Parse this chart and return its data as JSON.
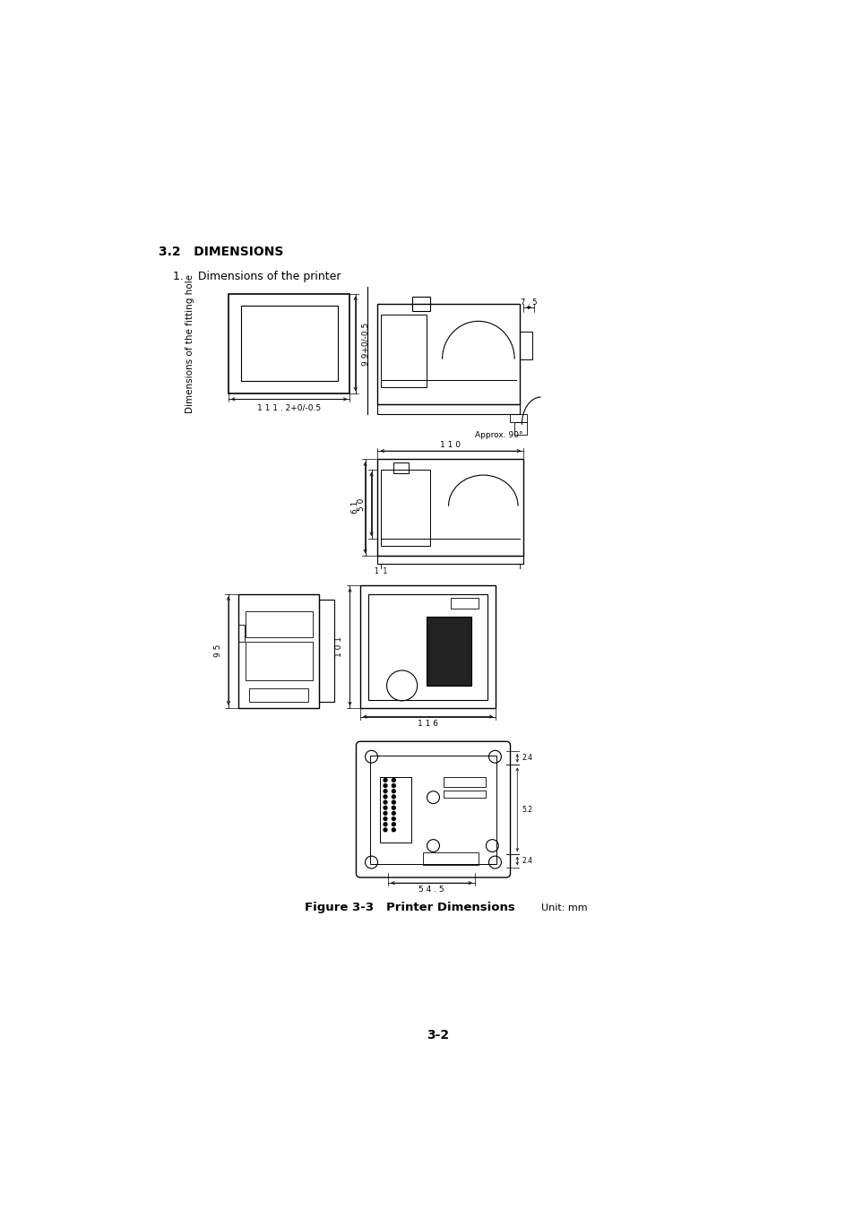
{
  "bg_color": "#ffffff",
  "title_32": "3.2   DIMENSIONS",
  "item1": "1.    Dimensions of the printer",
  "fitting_hole_label": "Dimensions of the fitting hole",
  "dim1": "1 1 1 . 2+0/-0.5",
  "dim2": "9 9+0/-0.5",
  "dim3": "7 . 5",
  "dim4": "1 1 0",
  "dim5": "6 1",
  "dim6": "5 0",
  "dim7": "9 5",
  "dim8": "1 0 1",
  "dim9": "1 1 6",
  "dim10": "5 4 . 5",
  "dim11": "2.4",
  "dim12": "5.2",
  "dim13": "2.4",
  "approx90": "Approx. 90°",
  "figure_label": "Figure 3-3   Printer Dimensions",
  "unit_label": "Unit: mm",
  "page_number": "3-2",
  "font_color": "#000000"
}
